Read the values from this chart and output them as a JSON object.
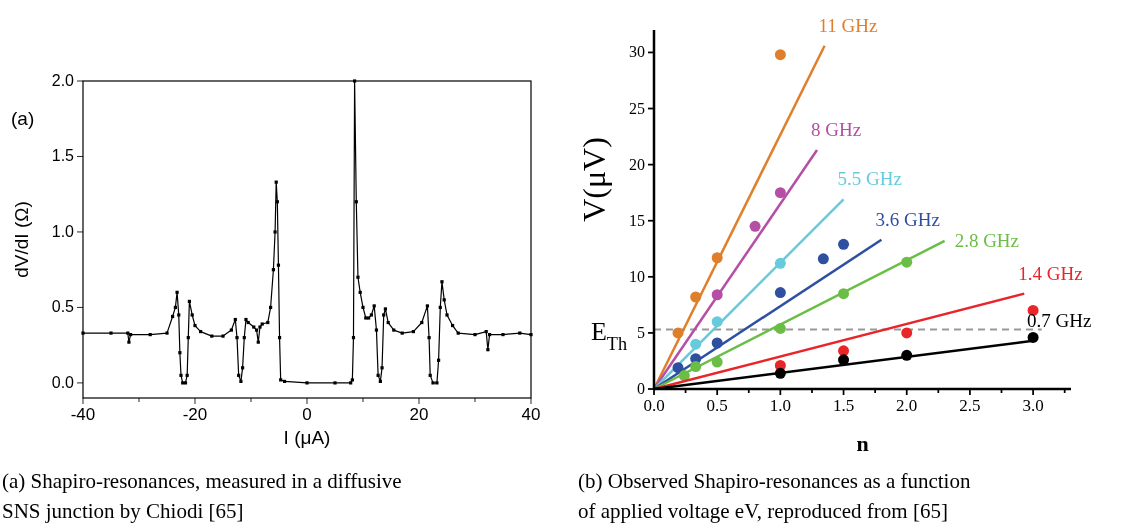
{
  "chart_data": [
    {
      "type": "line",
      "xlabel": "I (μA)",
      "ylabel": "dV/dI (Ω)",
      "xlim": [
        -40,
        40
      ],
      "ylim": [
        -0.1,
        2.0
      ],
      "xticks": [
        -40,
        {
          "value": -30,
          "label": null
        },
        -20,
        {
          "value": -10,
          "label": null
        },
        0,
        {
          "value": 10,
          "label": null
        },
        20,
        {
          "value": 30,
          "label": null
        },
        40
      ],
      "yticks": [
        {
          "value": 0,
          "label": "0.0"
        },
        {
          "value": 0.5,
          "label": "0.5"
        },
        {
          "value": 1,
          "label": "1.0"
        },
        {
          "value": 1.5,
          "label": "1.5"
        },
        {
          "value": 2,
          "label": "2.0"
        }
      ],
      "grid": false,
      "marker": "square",
      "line_style": "solid",
      "series": [
        {
          "color": "#000000",
          "x": [
            -40,
            -35,
            -32,
            -31.8,
            -31.5,
            -28,
            -25,
            -24,
            -23.5,
            -23.2,
            -22.9,
            -22.7,
            -22.5,
            -22.2,
            -21.7,
            -21.4,
            -21.2,
            -21,
            -20.5,
            -20,
            -19,
            -17,
            -15,
            -13.5,
            -12.8,
            -12.5,
            -12.2,
            -11.8,
            -11.5,
            -11.2,
            -10.9,
            -10.5,
            -9.5,
            -9,
            -8.7,
            -8.4,
            -8,
            -7,
            -6.5,
            -6,
            -5.7,
            -5.5,
            -5.3,
            -5.1,
            -4.9,
            -4.7,
            -4,
            0,
            5,
            7.8,
            8.1,
            8.3,
            8.5,
            8.8,
            9.1,
            9.5,
            10,
            10.5,
            11,
            11.5,
            12,
            12.4,
            12.7,
            13.1,
            13.4,
            13.7,
            14,
            14.5,
            15.5,
            17,
            19,
            20.5,
            21.5,
            21.8,
            22,
            22.5,
            23.2,
            23.5,
            23.8,
            24.1,
            24.5,
            25,
            26,
            27,
            30,
            32,
            32.3,
            32.6,
            35,
            38,
            40
          ],
          "values": [
            0.33,
            0.33,
            0.33,
            0.27,
            0.32,
            0.32,
            0.33,
            0.44,
            0.5,
            0.6,
            0.45,
            0.2,
            0.05,
            0,
            0,
            0.05,
            0.3,
            0.54,
            0.45,
            0.38,
            0.34,
            0.31,
            0.31,
            0.35,
            0.42,
            0.3,
            0.05,
            0.01,
            0.1,
            0.3,
            0.42,
            0.4,
            0.37,
            0.35,
            0.27,
            0.37,
            0.39,
            0.4,
            0.5,
            0.75,
            1.0,
            1.33,
            1.2,
            0.78,
            0.3,
            0.02,
            0.01,
            0,
            0,
            0,
            0.02,
            0.3,
            2.0,
            1.2,
            0.7,
            0.6,
            0.5,
            0.43,
            0.43,
            0.45,
            0.51,
            0.35,
            0.05,
            0.01,
            0.1,
            0.45,
            0.49,
            0.4,
            0.35,
            0.33,
            0.34,
            0.4,
            0.51,
            0.3,
            0.05,
            0,
            0,
            0.15,
            0.5,
            0.67,
            0.55,
            0.45,
            0.38,
            0.33,
            0.32,
            0.34,
            0.22,
            0.32,
            0.32,
            0.33,
            0.32
          ]
        }
      ],
      "annotations": [
        "(a)",
        "(a) Shapiro-resonances, measured in a diffusive SNS junction by Chiodi [65]"
      ]
    },
    {
      "type": "scatter",
      "xlabel": "n",
      "ylabel": "V(μV)",
      "xlim": [
        0,
        3.3
      ],
      "ylim": [
        0,
        32
      ],
      "xticks": [
        {
          "value": 0,
          "label": "0.0"
        },
        {
          "value": 0.25,
          "label": null
        },
        {
          "value": 0.5,
          "label": "0.5"
        },
        {
          "value": 0.75,
          "label": null
        },
        {
          "value": 1,
          "label": "1.0"
        },
        {
          "value": 1.25,
          "label": null
        },
        {
          "value": 1.5,
          "label": "1.5"
        },
        {
          "value": 1.75,
          "label": null
        },
        {
          "value": 2,
          "label": "2.0"
        },
        {
          "value": 2.25,
          "label": null
        },
        {
          "value": 2.5,
          "label": "2.5"
        },
        {
          "value": 2.75,
          "label": null
        },
        {
          "value": 3,
          "label": "3.0"
        },
        {
          "value": 3.25,
          "label": null
        }
      ],
      "yticks": [
        0,
        5,
        10,
        15,
        20,
        25,
        30
      ],
      "grid": false,
      "ref_lines": [
        {
          "axis": "y",
          "value": 5.3,
          "label": "E$_{Th}$",
          "color": "#999999",
          "line_style": "dashed"
        }
      ],
      "series": [
        {
          "marker": "circle",
          "color": "#e07f2a",
          "x": [
            0.19,
            0.33,
            0.5,
            1.0
          ],
          "values": [
            5.0,
            8.2,
            11.7,
            29.8
          ]
        },
        {
          "type": "line",
          "name": "11 GHz",
          "color": "#e07f2a",
          "x": [
            0,
            1.35
          ],
          "values": [
            0,
            30.6
          ]
        },
        {
          "marker": "circle",
          "color": "#b54fa5",
          "x": [
            0.5,
            0.8,
            1.0
          ],
          "values": [
            8.4,
            14.5,
            17.5
          ]
        },
        {
          "type": "line",
          "name": "8 GHz",
          "color": "#b54fa5",
          "x": [
            0,
            1.29
          ],
          "values": [
            0,
            21.3
          ]
        },
        {
          "marker": "circle",
          "color": "#66cbdc",
          "x": [
            0.33,
            0.5,
            1.0
          ],
          "values": [
            4.0,
            6.0,
            11.2
          ]
        },
        {
          "type": "line",
          "name": "5.5 GHz",
          "color": "#66cbdc",
          "x": [
            0,
            1.5
          ],
          "values": [
            0,
            16.9
          ]
        },
        {
          "marker": "circle",
          "color": "#2f4fa0",
          "x": [
            0.19,
            0.33,
            0.5,
            1.0,
            1.34,
            1.5
          ],
          "values": [
            1.9,
            2.7,
            4.1,
            8.6,
            11.6,
            12.9
          ]
        },
        {
          "type": "line",
          "name": "3.6 GHz",
          "color": "#2f4fa0",
          "x": [
            0,
            1.8
          ],
          "values": [
            0,
            13.3
          ]
        },
        {
          "marker": "circle",
          "color": "#6abe45",
          "x": [
            0.24,
            0.33,
            0.5,
            1.0,
            1.5,
            2.0
          ],
          "values": [
            1.2,
            2.0,
            2.4,
            5.4,
            8.5,
            11.3
          ]
        },
        {
          "type": "line",
          "name": "2.8 GHz",
          "color": "#6abe45",
          "x": [
            0,
            2.3
          ],
          "values": [
            0,
            13.2
          ]
        },
        {
          "marker": "circle",
          "color": "#e8262a",
          "x": [
            1.0,
            1.5,
            2.0,
            3.0
          ],
          "values": [
            2.1,
            3.4,
            5.0,
            7.0
          ]
        },
        {
          "type": "line",
          "name": "1.4 GHz",
          "color": "#e8262a",
          "x": [
            0,
            2.93
          ],
          "values": [
            0,
            8.5
          ]
        },
        {
          "marker": "circle",
          "color": "#000000",
          "x": [
            1.0,
            1.5,
            2.0,
            3.0
          ],
          "values": [
            1.4,
            2.6,
            3.0,
            4.6
          ]
        },
        {
          "type": "line",
          "name": "0.7 GHz",
          "color": "#000000",
          "x": [
            0,
            3.0
          ],
          "values": [
            0,
            4.3
          ]
        }
      ],
      "annotations": [
        "(b) Observed Shapiro-resonances as a function of applied voltage eV, reproduced from [65]"
      ]
    }
  ]
}
